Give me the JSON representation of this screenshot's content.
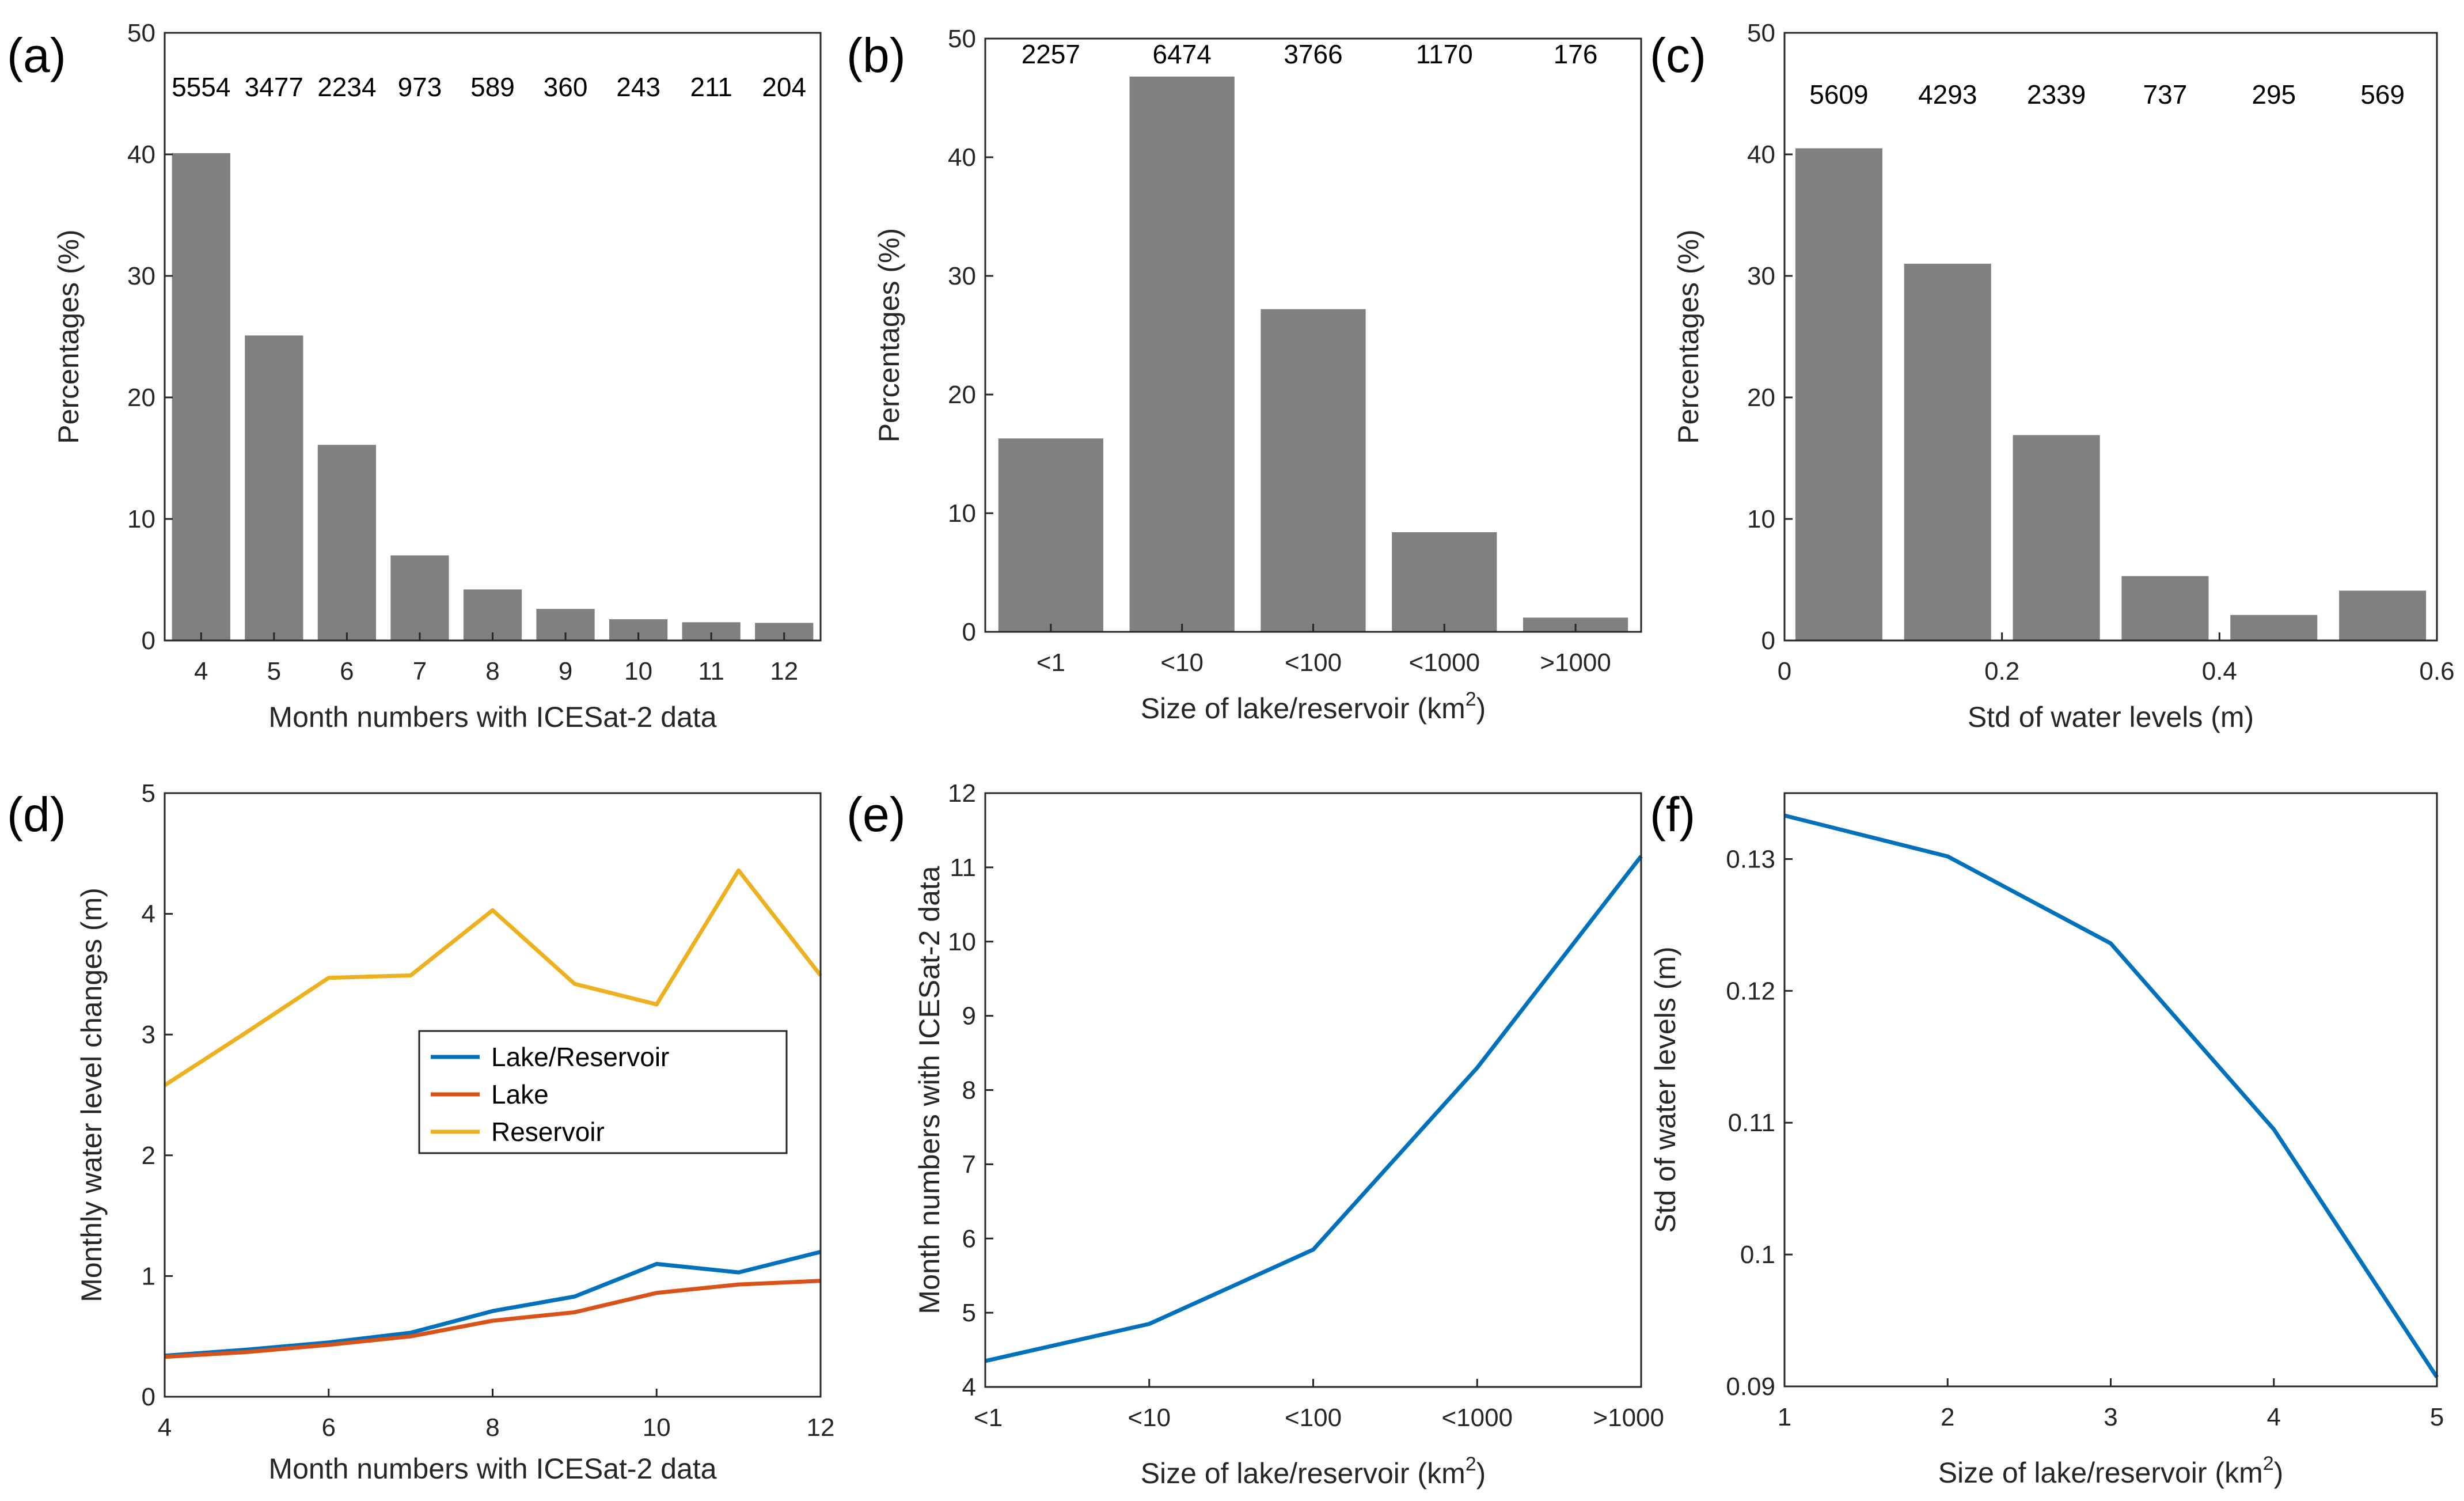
{
  "chart_data": [
    {
      "panel": "(a)",
      "type": "bar",
      "categories": [
        "4",
        "5",
        "6",
        "7",
        "8",
        "9",
        "10",
        "11",
        "12"
      ],
      "values": [
        40.1,
        25.1,
        16.1,
        7.0,
        4.2,
        2.6,
        1.75,
        1.5,
        1.45
      ],
      "counts": [
        "5554",
        "3477",
        "2234",
        "973",
        "589",
        "360",
        "243",
        "211",
        "204"
      ],
      "xlabel": "Month numbers with ICESat-2 data",
      "ylabel": "Percentages (%)",
      "ylim": [
        0,
        50
      ],
      "yticks": [
        "0",
        "10",
        "20",
        "30",
        "40",
        "50"
      ],
      "color": "#808080"
    },
    {
      "panel": "(b)",
      "type": "bar",
      "categories": [
        "<1",
        "<10",
        "<100",
        "<1000",
        ">1000"
      ],
      "values": [
        16.3,
        46.8,
        27.2,
        8.4,
        1.2
      ],
      "counts": [
        "2257",
        "6474",
        "3766",
        "1170",
        "176"
      ],
      "xlabel_main": "Size of lake/reservoir (km",
      "xlabel_sup": "2",
      "xlabel_end": ")",
      "ylabel": "Percentages (%)",
      "ylim": [
        0,
        50
      ],
      "yticks": [
        "0",
        "10",
        "20",
        "30",
        "40",
        "50"
      ],
      "color": "#808080"
    },
    {
      "panel": "(c)",
      "type": "bar",
      "bins": [
        [
          0,
          0.1
        ],
        [
          0.1,
          0.2
        ],
        [
          0.2,
          0.3
        ],
        [
          0.3,
          0.4
        ],
        [
          0.4,
          0.5
        ],
        [
          0.5,
          0.6
        ]
      ],
      "values": [
        40.5,
        31.0,
        16.9,
        5.3,
        2.1,
        4.1
      ],
      "counts": [
        "5609",
        "4293",
        "2339",
        "737",
        "295",
        "569"
      ],
      "xlabel": "Std of water levels (m)",
      "ylabel": "Percentages (%)",
      "xlim": [
        0,
        0.6
      ],
      "xticks": [
        0,
        0.2,
        0.4,
        0.6
      ],
      "xtick_labels": [
        "0",
        "0.2",
        "0.4",
        "0.6"
      ],
      "ylim": [
        0,
        50
      ],
      "yticks": [
        "0",
        "10",
        "20",
        "30",
        "40",
        "50"
      ],
      "color": "#808080"
    },
    {
      "panel": "(d)",
      "type": "line",
      "x": [
        4,
        5,
        6,
        7,
        8,
        9,
        10,
        11,
        12
      ],
      "series": [
        {
          "name": "Lake/Reservoir",
          "color": "#0072BD",
          "values": [
            0.34,
            0.39,
            0.45,
            0.53,
            0.71,
            0.83,
            1.1,
            1.03,
            1.2
          ]
        },
        {
          "name": "Lake",
          "color": "#D95319",
          "values": [
            0.33,
            0.37,
            0.43,
            0.5,
            0.63,
            0.7,
            0.86,
            0.93,
            0.96
          ]
        },
        {
          "name": "Reservoir",
          "color": "#EDB120",
          "values": [
            2.58,
            3.02,
            3.47,
            3.49,
            4.03,
            3.42,
            3.25,
            4.36,
            3.49
          ]
        }
      ],
      "xlabel": "Month numbers with ICESat-2 data",
      "ylabel": "Monthly water level changes (m)",
      "xlim": [
        4,
        12
      ],
      "xticks": [
        4,
        6,
        8,
        10,
        12
      ],
      "xtick_labels": [
        "4",
        "6",
        "8",
        "10",
        "12"
      ],
      "ylim": [
        0,
        5
      ],
      "yticks": [
        0,
        1,
        2,
        3,
        4,
        5
      ],
      "ytick_labels": [
        "0",
        "1",
        "2",
        "3",
        "4",
        "5"
      ],
      "legend": "center-right"
    },
    {
      "panel": "(e)",
      "type": "line",
      "categories": [
        "<1",
        "<10",
        "<100",
        "<1000",
        ">1000"
      ],
      "series": [
        {
          "name": "",
          "color": "#0072BD",
          "values": [
            4.35,
            4.85,
            5.85,
            8.3,
            11.15
          ]
        }
      ],
      "xlabel_main": "Size of lake/reservoir (km",
      "xlabel_sup": "2",
      "xlabel_end": ")",
      "ylabel": "Month numbers with ICESat-2 data",
      "ylim": [
        4,
        12
      ],
      "yticks": [
        4,
        5,
        6,
        7,
        8,
        9,
        10,
        11,
        12
      ],
      "ytick_labels": [
        "4",
        "5",
        "6",
        "7",
        "8",
        "9",
        "10",
        "11",
        "12"
      ]
    },
    {
      "panel": "(f)",
      "type": "line",
      "x": [
        1,
        2,
        3,
        4,
        5
      ],
      "series": [
        {
          "name": "",
          "color": "#0072BD",
          "values": [
            0.1333,
            0.1302,
            0.1236,
            0.1095,
            0.0907
          ]
        }
      ],
      "xlabel_main": "Size of lake/reservoir (km",
      "xlabel_sup": "2",
      "xlabel_end": ")",
      "ylabel": "Std of water levels (m)",
      "xlim": [
        1,
        5
      ],
      "xticks": [
        1,
        2,
        3,
        4,
        5
      ],
      "xtick_labels": [
        "1",
        "2",
        "3",
        "4",
        "5"
      ],
      "ylim": [
        0.09,
        0.135
      ],
      "yticks": [
        0.09,
        0.1,
        0.11,
        0.12,
        0.13
      ],
      "ytick_labels": [
        "0.09",
        "0.1",
        "0.11",
        "0.12",
        "0.13"
      ]
    }
  ]
}
